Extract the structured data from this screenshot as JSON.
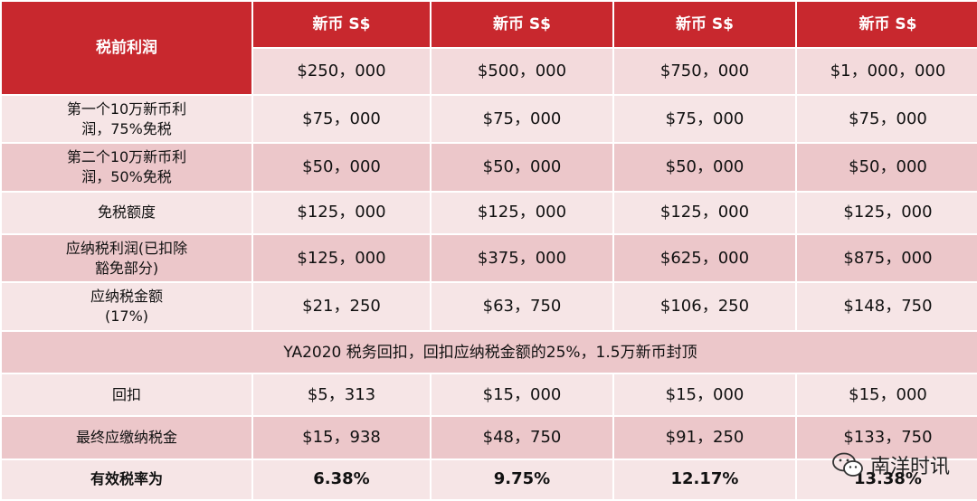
{
  "header": {
    "row_label": "税前利润",
    "currency_labels": [
      "新币 S$",
      "新币 S$",
      "新币 S$",
      "新币 S$"
    ],
    "profit_values": [
      "$250，000",
      "$500，000",
      "$750，000",
      "$1，000，000"
    ]
  },
  "rows": [
    {
      "label": "第一个10万新币利润，75%免税",
      "values": [
        "$75，000",
        "$75，000",
        "$75，000",
        "$75，000"
      ]
    },
    {
      "label": "第二个10万新币利润，50%免税",
      "values": [
        "$50，000",
        "$50，000",
        "$50，000",
        "$50，000"
      ]
    },
    {
      "label": "免税额度",
      "values": [
        "$125，000",
        "$125，000",
        "$125，000",
        "$125，000"
      ]
    },
    {
      "label": "应纳税利润(已扣除豁免部分)",
      "values": [
        "$125，000",
        "$375，000",
        "$625，000",
        "$875，000"
      ]
    },
    {
      "label": "应纳税金额(17%)",
      "values": [
        "$21，250",
        "$63，750",
        "$106，250",
        "$148，750"
      ]
    }
  ],
  "note": "YA2020 税务回扣，回扣应纳税金额的25%，1.5万新币封顶",
  "rows_after": [
    {
      "label": "回扣",
      "values": [
        "$5，313",
        "$15，000",
        "$15，000",
        "$15，000"
      ]
    },
    {
      "label": "最终应缴纳税金",
      "values": [
        "$15，938",
        "$48，750",
        "$91，250",
        "$133，750"
      ]
    }
  ],
  "effective": {
    "label": "有效税率为",
    "values": [
      "6.38%",
      "9.75%",
      "12.17%",
      "13.38%"
    ]
  },
  "watermark": "南洋时讯"
}
